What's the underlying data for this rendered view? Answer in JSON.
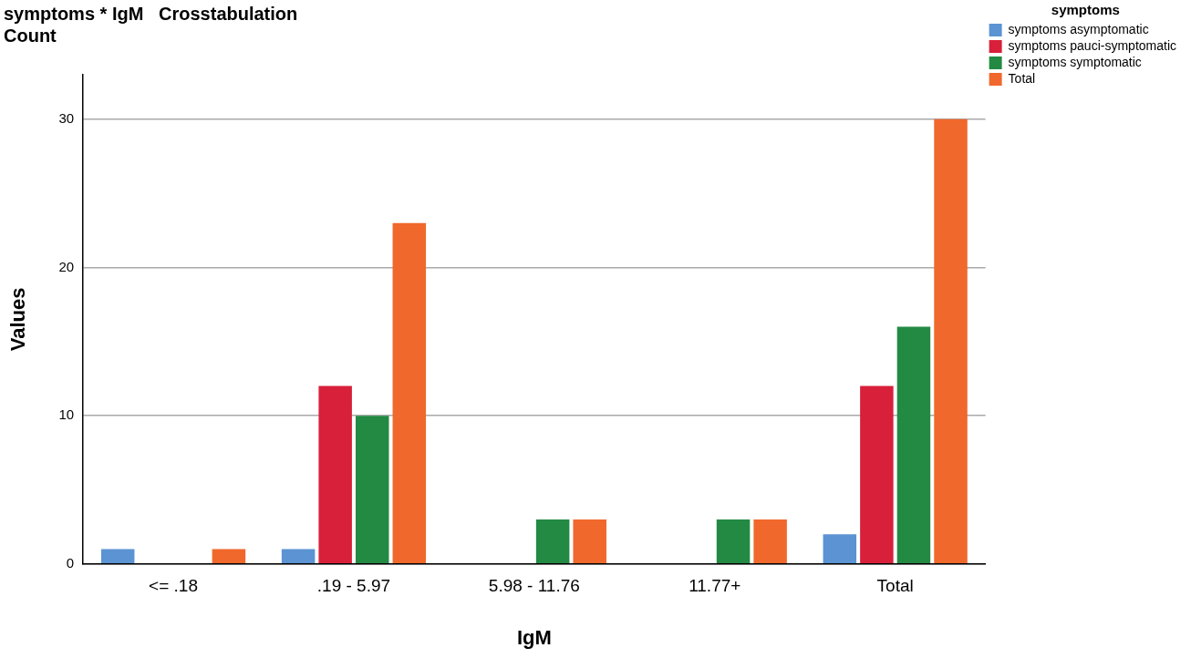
{
  "chart_data": {
    "type": "bar",
    "title": "symptoms * IgM   Crosstabulation",
    "subtitle": "Count",
    "xlabel": "IgM",
    "ylabel": "Values",
    "legend_title": "symptoms",
    "categories": [
      "<= .18",
      ".19 - 5.97",
      "5.98 - 11.76",
      "11.77+",
      "Total"
    ],
    "series": [
      {
        "name": "symptoms asymptomatic",
        "color": "#5b93d3",
        "values": [
          1,
          1,
          0,
          0,
          2
        ]
      },
      {
        "name": "symptoms pauci-symptomatic",
        "color": "#d8203a",
        "values": [
          0,
          12,
          0,
          0,
          12
        ]
      },
      {
        "name": "symptoms symptomatic",
        "color": "#238a43",
        "values": [
          0,
          10,
          3,
          3,
          16
        ]
      },
      {
        "name": "Total",
        "color": "#f0682c",
        "values": [
          1,
          23,
          3,
          3,
          30
        ]
      }
    ],
    "ylim": [
      0,
      33
    ],
    "yticks": [
      0,
      10,
      20,
      30
    ],
    "grid": "y",
    "legend": "top right"
  }
}
